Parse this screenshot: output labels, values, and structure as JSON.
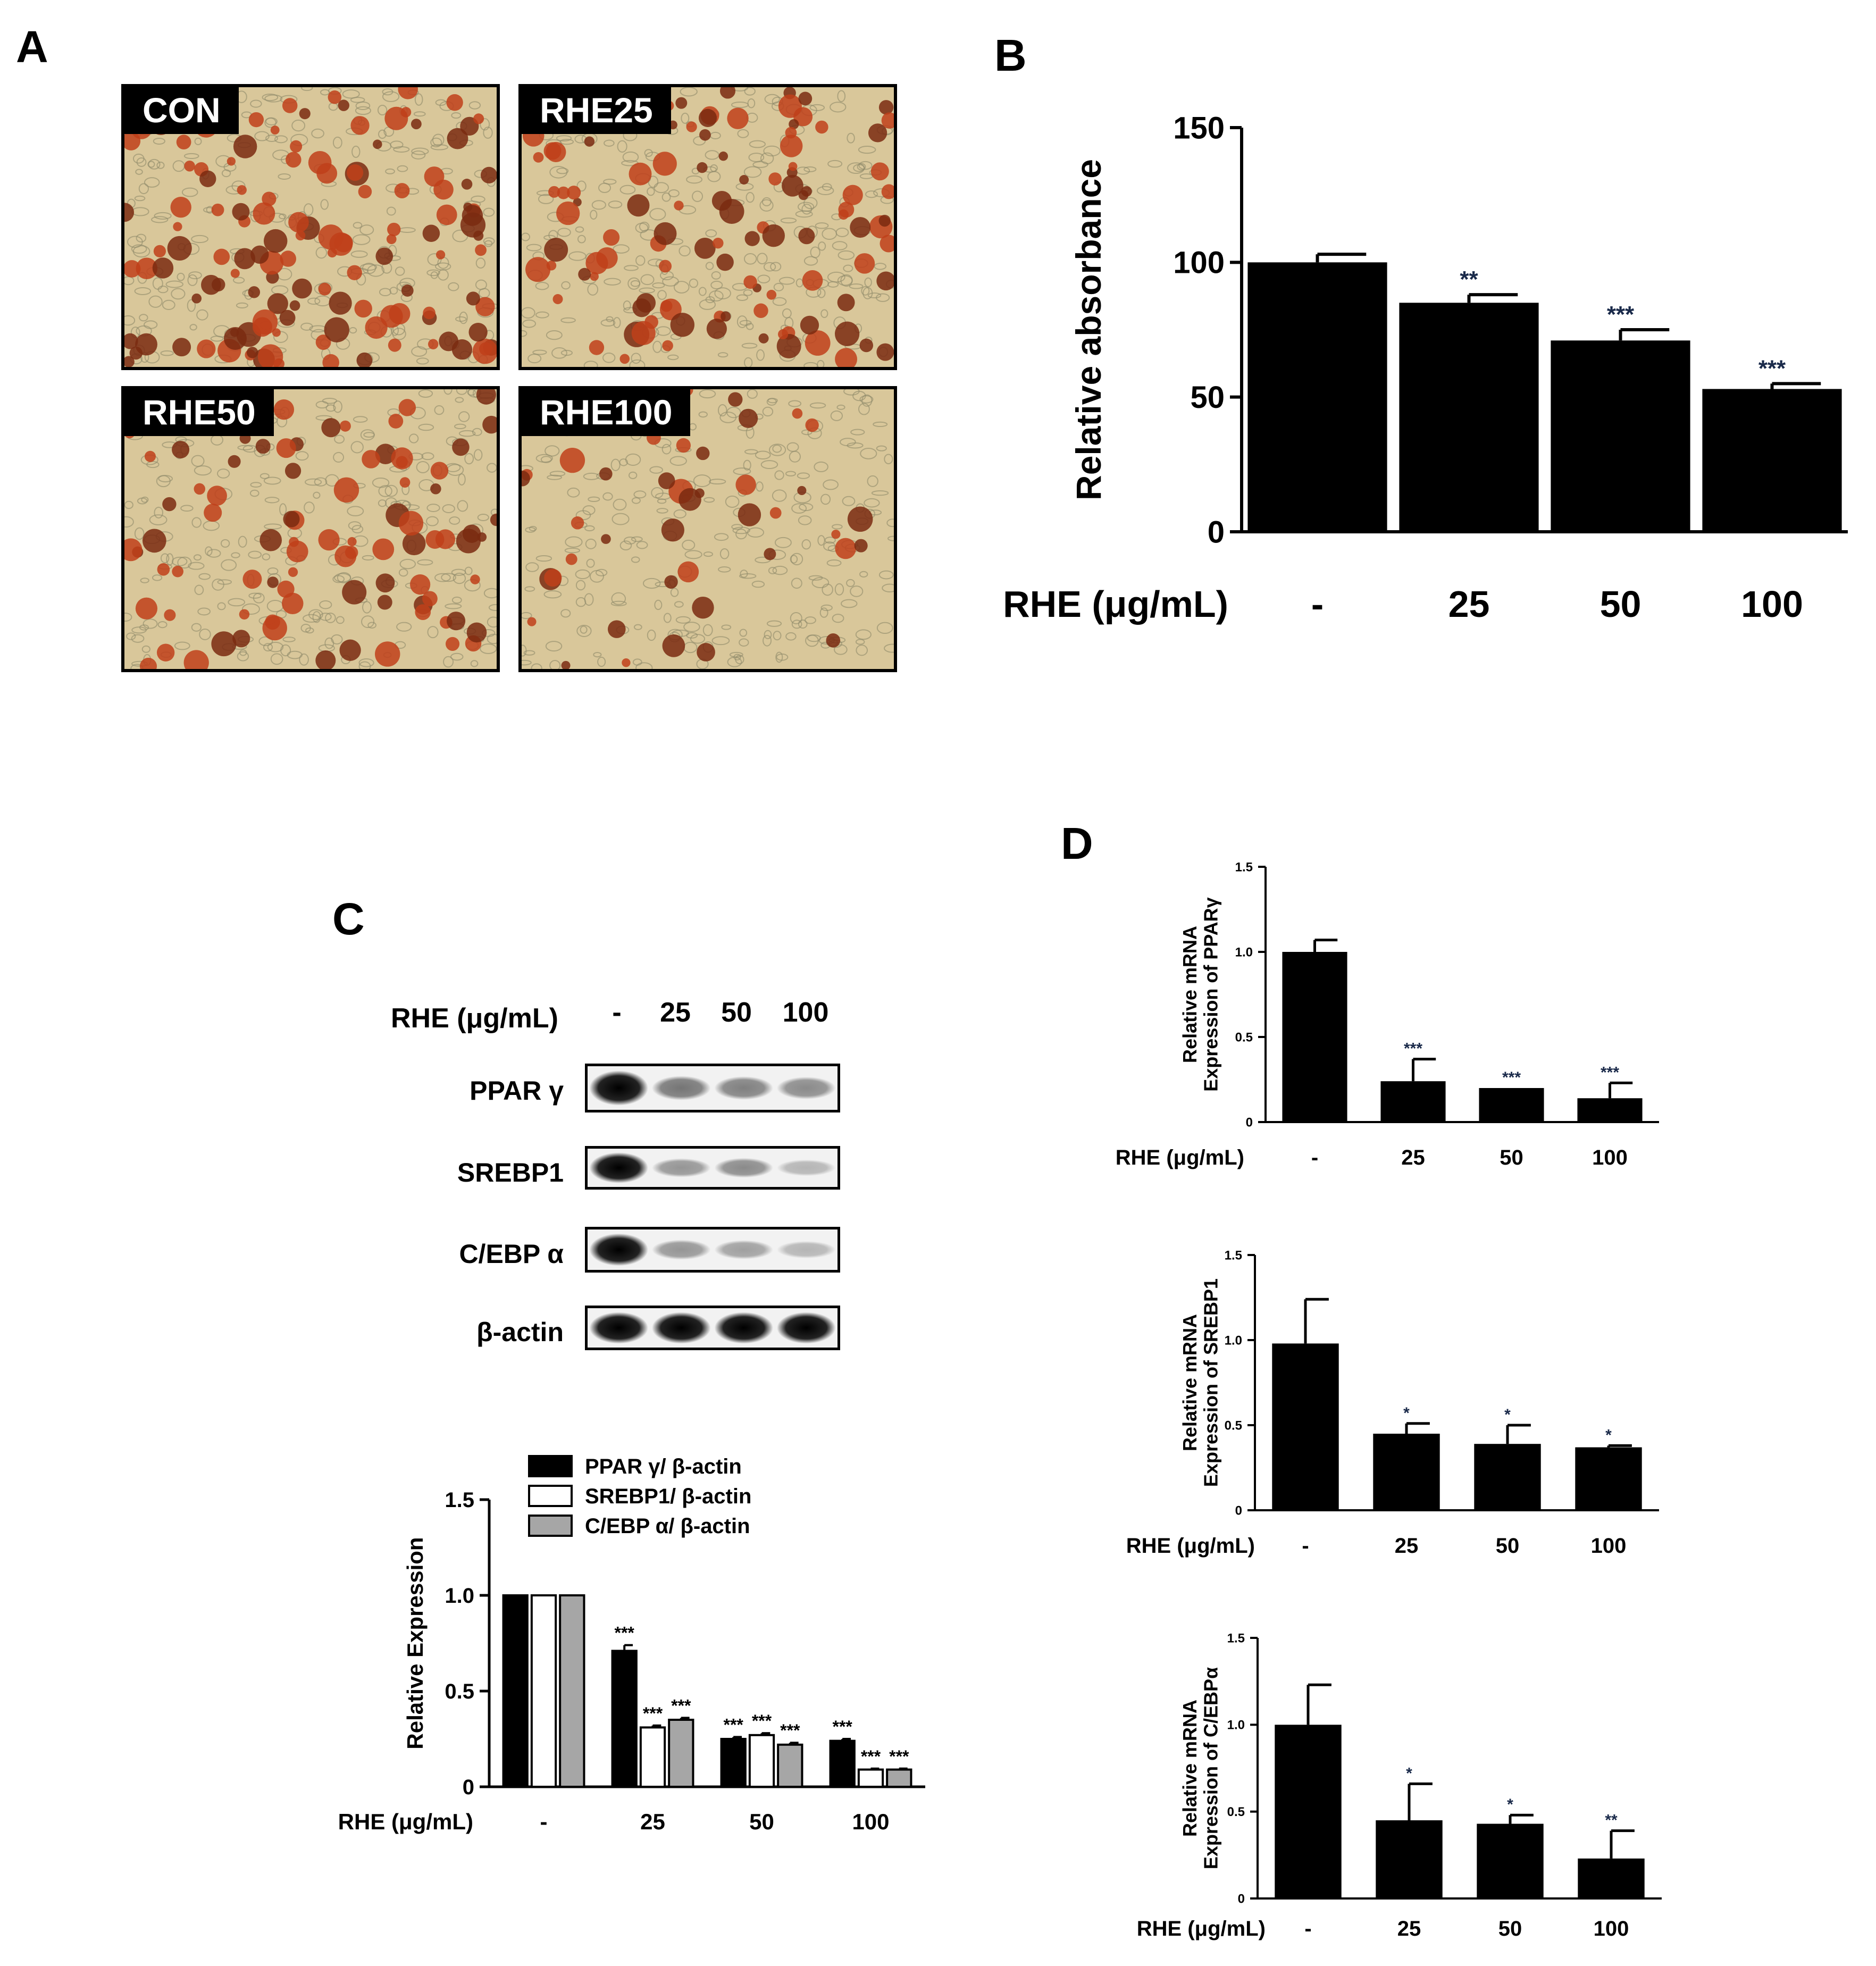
{
  "panels": {
    "a": "A",
    "b": "B",
    "c": "C",
    "d": "D"
  },
  "micrographs": [
    {
      "label": "CON",
      "density": 1.0
    },
    {
      "label": "RHE25",
      "density": 0.8
    },
    {
      "label": "RHE50",
      "density": 0.65
    },
    {
      "label": "RHE100",
      "density": 0.3
    }
  ],
  "colors": {
    "bar": "#000000",
    "stain": "#c0401a",
    "background_cells": "#d9c79a",
    "grey_bar": "#a6a6a6"
  },
  "western": {
    "xlabel": "RHE (μg/mL)",
    "lanes": [
      "-",
      "25",
      "50",
      "100"
    ],
    "bands": [
      {
        "label": "PPAR γ",
        "intensity": [
          1.0,
          0.45,
          0.4,
          0.35
        ]
      },
      {
        "label": "SREBP1",
        "intensity": [
          1.0,
          0.3,
          0.35,
          0.15
        ]
      },
      {
        "label": "C/EBP α",
        "intensity": [
          1.0,
          0.3,
          0.25,
          0.15
        ]
      },
      {
        "label": "β-actin",
        "intensity": [
          1.0,
          1.0,
          1.0,
          1.0
        ]
      }
    ]
  },
  "chart_data": [
    {
      "id": "B",
      "type": "bar",
      "ylabel": "Relative absorbance",
      "xlabel": "RHE (μg/mL)",
      "categories": [
        "-",
        "25",
        "50",
        "100"
      ],
      "values": [
        100,
        85,
        71,
        53
      ],
      "errors": [
        3,
        3,
        4,
        2
      ],
      "significance": [
        "",
        "**",
        "***",
        "***"
      ],
      "ylim": [
        0,
        150
      ],
      "yticks": [
        "0",
        "50",
        "100",
        "150"
      ]
    },
    {
      "id": "C",
      "type": "bar",
      "ylabel": "Relative Expression",
      "xlabel": "RHE (μg/mL)",
      "categories": [
        "-",
        "25",
        "50",
        "100"
      ],
      "series": [
        {
          "name": "PPAR γ/ β-actin",
          "values": [
            1.0,
            0.71,
            0.25,
            0.24
          ],
          "errors": [
            0,
            0.03,
            0.01,
            0.01
          ],
          "significance": [
            "",
            "***",
            "***",
            "***"
          ]
        },
        {
          "name": "SREBP1/ β-actin",
          "values": [
            1.0,
            0.31,
            0.27,
            0.09
          ],
          "errors": [
            0,
            0.01,
            0.01,
            0.005
          ],
          "significance": [
            "",
            "***",
            "***",
            "***"
          ]
        },
        {
          "name": "C/EBP α/ β-actin",
          "values": [
            1.0,
            0.35,
            0.22,
            0.09
          ],
          "errors": [
            0,
            0.01,
            0.01,
            0.005
          ],
          "significance": [
            "",
            "***",
            "***",
            "***"
          ]
        }
      ],
      "ylim": [
        0,
        1.5
      ],
      "yticks": [
        "0",
        "0.5",
        "1.0",
        "1.5"
      ],
      "legend": "top-right"
    },
    {
      "id": "D1",
      "type": "bar",
      "ylabel": [
        "Relative mRNA",
        "Expression of PPARγ"
      ],
      "xlabel": "RHE (μg/mL)",
      "categories": [
        "-",
        "25",
        "50",
        "100"
      ],
      "values": [
        1.0,
        0.24,
        0.2,
        0.14
      ],
      "errors": [
        0.07,
        0.13,
        0,
        0.09
      ],
      "significance": [
        "",
        "***",
        "***",
        "***"
      ],
      "ylim": [
        0,
        1.5
      ],
      "yticks": [
        "0",
        "0.5",
        "1.0",
        "1.5"
      ]
    },
    {
      "id": "D2",
      "type": "bar",
      "ylabel": [
        "Relative mRNA",
        "Expression of SREBP1"
      ],
      "xlabel": "RHE (μg/mL)",
      "categories": [
        "-",
        "25",
        "50",
        "100"
      ],
      "values": [
        0.98,
        0.45,
        0.39,
        0.37
      ],
      "errors": [
        0.26,
        0.06,
        0.11,
        0.01
      ],
      "significance": [
        "",
        "*",
        "*",
        "*"
      ],
      "ylim": [
        0,
        1.5
      ],
      "yticks": [
        "0",
        "0.5",
        "1.0",
        "1.5"
      ]
    },
    {
      "id": "D3",
      "type": "bar",
      "ylabel": [
        "Relative mRNA",
        "Expression of C/EBPα"
      ],
      "xlabel": "RHE (μg/mL)",
      "categories": [
        "-",
        "25",
        "50",
        "100"
      ],
      "values": [
        1.0,
        0.45,
        0.43,
        0.23
      ],
      "errors": [
        0.23,
        0.21,
        0.05,
        0.16
      ],
      "significance": [
        "",
        "*",
        "*",
        "**"
      ],
      "ylim": [
        0,
        1.5
      ],
      "yticks": [
        "0",
        "0.5",
        "1.0",
        "1.5"
      ]
    }
  ]
}
